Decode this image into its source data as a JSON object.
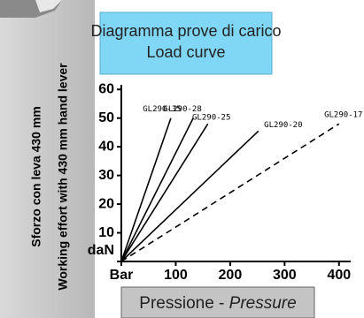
{
  "chart_data": {
    "type": "line",
    "title": [
      "Diagramma prove di carico",
      "Load curve"
    ],
    "ylabel": [
      "Sforzo con leva 430 mm",
      "Working effort with 430 mm hand lever"
    ],
    "xlabel": [
      "Pressione -",
      "Pressure"
    ],
    "xlim": [
      0,
      415
    ],
    "ylim": [
      0,
      61
    ],
    "xticks": [
      {
        "value": 0,
        "label": "Bar"
      },
      100,
      200,
      300,
      400
    ],
    "yticks": [
      {
        "value": 0,
        "label": "daN"
      },
      10,
      20,
      30,
      40,
      50,
      60
    ],
    "series": [
      {
        "name": "GL290-35",
        "color": "#000000",
        "style": "solid",
        "x": [
          0,
          91
        ],
        "values": [
          0,
          50
        ]
      },
      {
        "name": "GL290-28",
        "color": "#000000",
        "style": "solid",
        "x": [
          0,
          132
        ],
        "values": [
          0,
          50
        ]
      },
      {
        "name": "GL290-25",
        "color": "#000000",
        "style": "solid",
        "x": [
          0,
          159
        ],
        "values": [
          0,
          48
        ]
      },
      {
        "name": "GL290-20",
        "color": "#000000",
        "style": "solid",
        "x": [
          0,
          252
        ],
        "values": [
          0,
          45.5
        ]
      },
      {
        "name": "GL290-17",
        "color": "#000000",
        "style": "dashed",
        "x": [
          0,
          400
        ],
        "values": [
          0,
          48
        ]
      }
    ]
  }
}
